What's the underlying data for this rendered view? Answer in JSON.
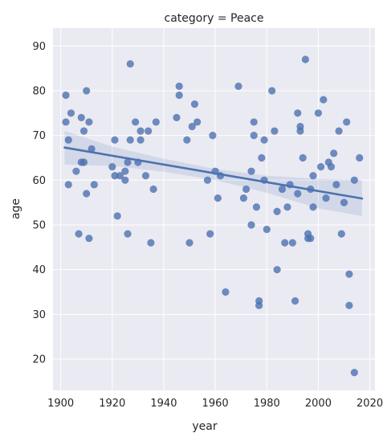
{
  "chart_data": {
    "type": "scatter",
    "title": "category = Peace",
    "xlabel": "year",
    "ylabel": "age",
    "xlim": [
      1897,
      2022
    ],
    "ylim": [
      13,
      94
    ],
    "x_ticks": [
      1900,
      1920,
      1940,
      1960,
      1980,
      2000,
      2020
    ],
    "y_ticks": [
      20,
      30,
      40,
      50,
      60,
      70,
      80,
      90
    ],
    "x_tick_labels": [
      "1900",
      "1920",
      "1940",
      "1960",
      "1980",
      "2000",
      "2020"
    ],
    "y_tick_labels": [
      "20",
      "30",
      "40",
      "50",
      "60",
      "70",
      "80",
      "90"
    ],
    "grid": true,
    "colors": {
      "background": "#EAEAF2",
      "grid": "#FFFFFF",
      "points": "#4C72B0",
      "line": "#4C72B0",
      "band": "#4C72B0"
    },
    "regression": {
      "x": [
        1901.5,
        2017
      ],
      "y": [
        67.3,
        55.9
      ]
    },
    "confidence_band": {
      "x": [
        1901.5,
        1920,
        1940,
        1960,
        1980,
        2000,
        2017
      ],
      "upper": [
        71.0,
        67.5,
        64.8,
        62.5,
        61.0,
        60.3,
        60.0
      ],
      "lower": [
        63.5,
        63.2,
        61.9,
        60.0,
        57.2,
        53.7,
        52.0
      ]
    },
    "points": [
      {
        "x": 1902,
        "y": 73
      },
      {
        "x": 1902,
        "y": 79
      },
      {
        "x": 1903,
        "y": 59
      },
      {
        "x": 1903,
        "y": 69
      },
      {
        "x": 1904,
        "y": 75
      },
      {
        "x": 1906,
        "y": 62
      },
      {
        "x": 1907,
        "y": 48
      },
      {
        "x": 1908,
        "y": 74
      },
      {
        "x": 1908,
        "y": 64
      },
      {
        "x": 1909,
        "y": 71
      },
      {
        "x": 1909,
        "y": 64
      },
      {
        "x": 1910,
        "y": 57
      },
      {
        "x": 1910,
        "y": 80
      },
      {
        "x": 1911,
        "y": 73
      },
      {
        "x": 1911,
        "y": 47
      },
      {
        "x": 1912,
        "y": 67
      },
      {
        "x": 1913,
        "y": 59
      },
      {
        "x": 1920,
        "y": 63
      },
      {
        "x": 1921,
        "y": 69
      },
      {
        "x": 1921,
        "y": 61
      },
      {
        "x": 1922,
        "y": 52
      },
      {
        "x": 1923,
        "y": 61
      },
      {
        "x": 1925,
        "y": 60
      },
      {
        "x": 1925,
        "y": 62
      },
      {
        "x": 1926,
        "y": 48
      },
      {
        "x": 1926,
        "y": 64
      },
      {
        "x": 1927,
        "y": 86
      },
      {
        "x": 1927,
        "y": 69
      },
      {
        "x": 1929,
        "y": 73
      },
      {
        "x": 1930,
        "y": 64
      },
      {
        "x": 1931,
        "y": 69
      },
      {
        "x": 1931,
        "y": 71
      },
      {
        "x": 1933,
        "y": 61
      },
      {
        "x": 1934,
        "y": 71
      },
      {
        "x": 1935,
        "y": 46
      },
      {
        "x": 1936,
        "y": 58
      },
      {
        "x": 1937,
        "y": 73
      },
      {
        "x": 1945,
        "y": 74
      },
      {
        "x": 1946,
        "y": 81
      },
      {
        "x": 1946,
        "y": 79
      },
      {
        "x": 1949,
        "y": 69
      },
      {
        "x": 1950,
        "y": 46
      },
      {
        "x": 1951,
        "y": 72
      },
      {
        "x": 1952,
        "y": 77
      },
      {
        "x": 1953,
        "y": 73
      },
      {
        "x": 1957,
        "y": 60
      },
      {
        "x": 1958,
        "y": 48
      },
      {
        "x": 1959,
        "y": 70
      },
      {
        "x": 1960,
        "y": 62
      },
      {
        "x": 1961,
        "y": 56
      },
      {
        "x": 1962,
        "y": 61
      },
      {
        "x": 1964,
        "y": 35
      },
      {
        "x": 1969,
        "y": 81
      },
      {
        "x": 1971,
        "y": 56
      },
      {
        "x": 1972,
        "y": 58
      },
      {
        "x": 1974,
        "y": 62
      },
      {
        "x": 1974,
        "y": 50
      },
      {
        "x": 1975,
        "y": 73
      },
      {
        "x": 1975,
        "y": 70
      },
      {
        "x": 1976,
        "y": 54
      },
      {
        "x": 1977,
        "y": 33
      },
      {
        "x": 1977,
        "y": 32
      },
      {
        "x": 1978,
        "y": 65
      },
      {
        "x": 1979,
        "y": 69
      },
      {
        "x": 1979,
        "y": 60
      },
      {
        "x": 1980,
        "y": 49
      },
      {
        "x": 1982,
        "y": 80
      },
      {
        "x": 1983,
        "y": 71
      },
      {
        "x": 1984,
        "y": 40
      },
      {
        "x": 1984,
        "y": 53
      },
      {
        "x": 1986,
        "y": 58
      },
      {
        "x": 1987,
        "y": 46
      },
      {
        "x": 1988,
        "y": 54
      },
      {
        "x": 1989,
        "y": 59
      },
      {
        "x": 1990,
        "y": 46
      },
      {
        "x": 1991,
        "y": 33
      },
      {
        "x": 1992,
        "y": 75
      },
      {
        "x": 1992,
        "y": 57
      },
      {
        "x": 1993,
        "y": 72
      },
      {
        "x": 1993,
        "y": 71
      },
      {
        "x": 1994,
        "y": 65
      },
      {
        "x": 1995,
        "y": 87
      },
      {
        "x": 1996,
        "y": 48
      },
      {
        "x": 1996,
        "y": 47
      },
      {
        "x": 1997,
        "y": 58
      },
      {
        "x": 1997,
        "y": 47
      },
      {
        "x": 1998,
        "y": 61
      },
      {
        "x": 1998,
        "y": 54
      },
      {
        "x": 2000,
        "y": 75
      },
      {
        "x": 2001,
        "y": 63
      },
      {
        "x": 2002,
        "y": 78
      },
      {
        "x": 2003,
        "y": 56
      },
      {
        "x": 2004,
        "y": 64
      },
      {
        "x": 2005,
        "y": 63
      },
      {
        "x": 2006,
        "y": 66
      },
      {
        "x": 2007,
        "y": 59
      },
      {
        "x": 2008,
        "y": 71
      },
      {
        "x": 2009,
        "y": 48
      },
      {
        "x": 2010,
        "y": 55
      },
      {
        "x": 2011,
        "y": 73
      },
      {
        "x": 2012,
        "y": 39
      },
      {
        "x": 2012,
        "y": 32
      },
      {
        "x": 2014,
        "y": 60
      },
      {
        "x": 2014,
        "y": 17
      },
      {
        "x": 2016,
        "y": 65
      }
    ]
  }
}
